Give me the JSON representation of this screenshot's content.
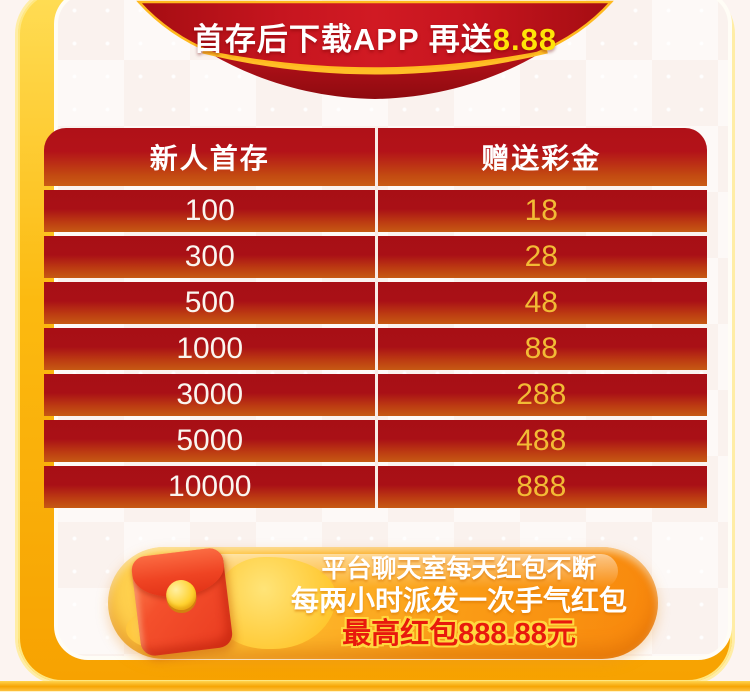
{
  "banner": {
    "text_main": "首存后下载APP 再送",
    "highlight": "8.88"
  },
  "table": {
    "headers": [
      "新人首存",
      "赠送彩金"
    ],
    "rows": [
      [
        "100",
        "18"
      ],
      [
        "300",
        "28"
      ],
      [
        "500",
        "48"
      ],
      [
        "1000",
        "88"
      ],
      [
        "3000",
        "288"
      ],
      [
        "5000",
        "488"
      ],
      [
        "10000",
        "888"
      ]
    ]
  },
  "footer": {
    "line1": "平台聊天室每天红包不断",
    "line2": "每两小时派发一次手气红包",
    "line3": "最高红包888.88元",
    "icon": "red-envelope-icon"
  },
  "colors": {
    "deep_red": "#a80f15",
    "orange": "#c65a13",
    "gold_frame": "#fcba10",
    "highlight_yellow": "#ffe408",
    "bonus_gold": "#f2bb35",
    "pill_orange": "#f8860c",
    "prize_red": "#e8190d"
  }
}
